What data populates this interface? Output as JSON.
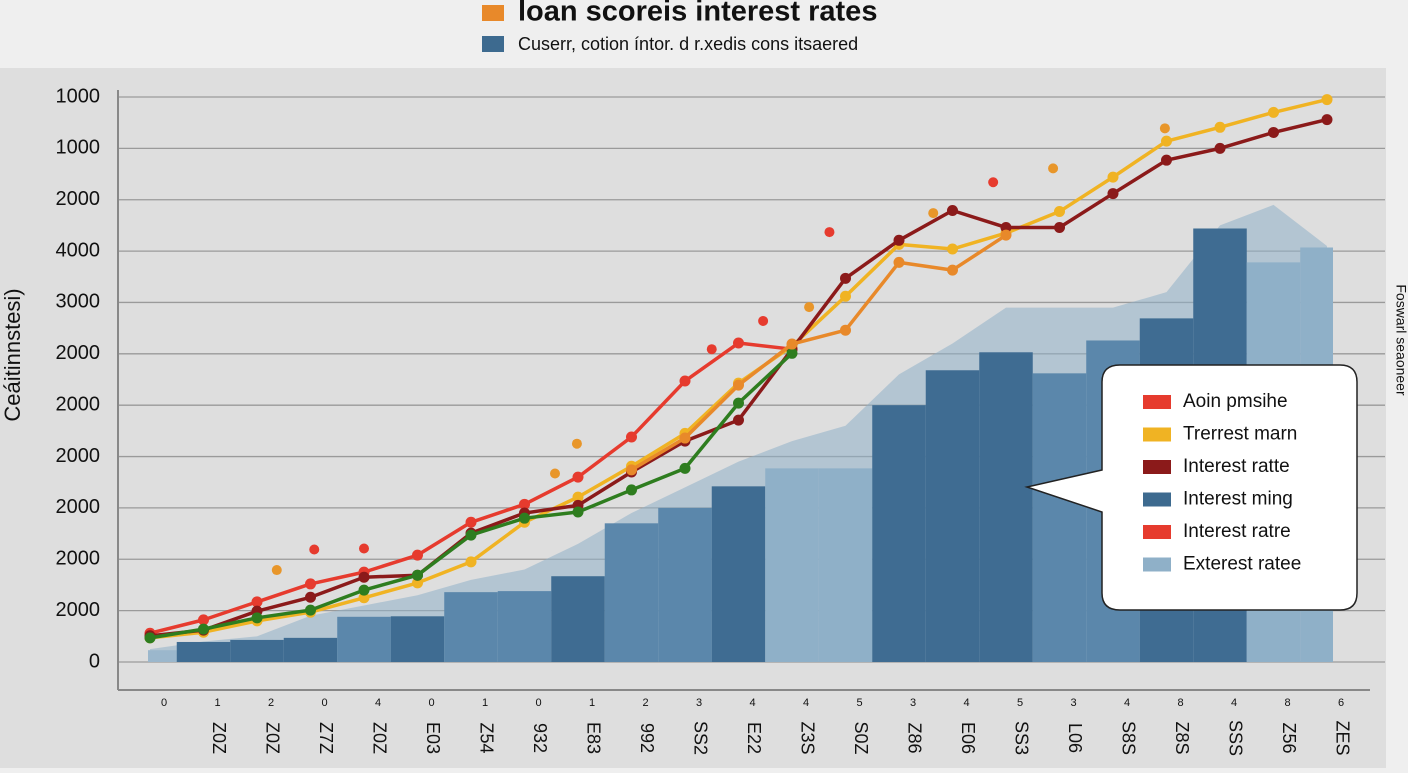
{
  "chart_data": {
    "type": "line",
    "title": "loan scoreis interest rates",
    "subtitle": "Cuserr, cotion íntor. d r.xedis cons itsaered",
    "y_label": "Ceáitinnstesi)",
    "right_label": "Foswarl seaoneer",
    "categories": [
      "0",
      "1",
      "2",
      "0",
      "4",
      "0",
      "1",
      "0",
      "1",
      "2",
      "3",
      "4",
      "4",
      "5",
      "3",
      "4",
      "5",
      "3",
      "4",
      "8",
      "4",
      "8",
      "6"
    ],
    "category_labels": [
      null,
      "Z0Z",
      "Z0Z",
      "Z7Z",
      "Z0Z",
      "E03",
      "Z54",
      "932",
      "E83",
      "992",
      "SS2",
      "E22",
      "Z3S",
      "S0Z",
      "Z86",
      "E06",
      "SS3",
      "L06",
      "S8S",
      "Z8S",
      "SSS",
      "Z56",
      "ZES"
    ],
    "ylim": [
      0,
      11
    ],
    "yticks": [
      {
        "value": 0,
        "label": "0"
      },
      {
        "value": 1,
        "label": "2000"
      },
      {
        "value": 2,
        "label": "2000"
      },
      {
        "value": 3,
        "label": "2000"
      },
      {
        "value": 4,
        "label": "2000"
      },
      {
        "value": 5,
        "label": "2000"
      },
      {
        "value": 6,
        "label": "2000"
      },
      {
        "value": 7,
        "label": "3000"
      },
      {
        "value": 8,
        "label": "4000"
      },
      {
        "value": 9,
        "label": "2000"
      },
      {
        "value": 10,
        "label": "1000"
      },
      {
        "value": 11,
        "label": "1000"
      }
    ],
    "grid": true,
    "series": [
      {
        "name": "Aoin pmsihe",
        "type": "line",
        "color": "#e63b2e",
        "values": [
          0.56,
          0.82,
          1.17,
          1.52,
          1.75,
          2.08,
          2.72,
          3.07,
          3.6,
          4.38,
          5.47,
          6.21,
          6.09,
          null,
          null,
          null,
          null,
          null,
          null,
          null,
          null,
          null,
          null
        ]
      },
      {
        "name": "Trerrest marn",
        "type": "line",
        "color": "#f0b323",
        "values": [
          0.47,
          0.58,
          0.8,
          0.97,
          1.25,
          1.54,
          1.95,
          2.72,
          3.21,
          3.81,
          4.45,
          5.43,
          6.15,
          7.12,
          8.13,
          8.04,
          8.35,
          8.77,
          9.44,
          10.14,
          10.41,
          10.7,
          10.95
        ]
      },
      {
        "name": "Interest ratte",
        "type": "line",
        "color": "#8b1a1a",
        "values": [
          0.51,
          0.62,
          0.99,
          1.26,
          1.65,
          1.69,
          2.51,
          2.9,
          3.05,
          3.7,
          4.3,
          4.71,
          6.09,
          7.47,
          8.21,
          8.79,
          8.46,
          8.46,
          9.12,
          9.77,
          10.0,
          10.31,
          10.56
        ]
      },
      {
        "name": "Interest ming",
        "type": "bar",
        "color": "#3d6a8f",
        "colors": [
          "#9bb7cc",
          "#3f6c92",
          "#3f6c92",
          "#3f6c92",
          "#5b87ab",
          "#3f6c92",
          "#5b87ab",
          "#5b87ab",
          "#3f6c92",
          "#5b87ab",
          "#5b87ab",
          "#3f6c92",
          "#8fb0c8",
          "#8fb0c8",
          "#3f6c92",
          "#3f6c92",
          "#3f6c92",
          "#5b87ab",
          "#5b87ab",
          "#3f6c92",
          "#3f6c92",
          "#8fb0c8",
          "#8fb0c8"
        ],
        "values": [
          0.23,
          0.39,
          0.43,
          0.47,
          0.88,
          0.89,
          1.36,
          1.38,
          1.67,
          2.7,
          3.0,
          3.42,
          3.77,
          3.77,
          5.0,
          5.68,
          6.03,
          5.62,
          6.26,
          6.69,
          8.44,
          7.78,
          8.07
        ]
      },
      {
        "name": "Interest ratre",
        "type": "scatter",
        "color": "#e63b2e",
        "x": [
          3.07,
          4.0,
          10.5,
          11.46,
          12.7,
          15.76
        ],
        "values": [
          2.19,
          2.21,
          6.09,
          6.64,
          8.37,
          9.34
        ]
      },
      {
        "name": "Exterest ratee",
        "type": "area",
        "color": "#8fb0c8",
        "values": [
          0.25,
          0.4,
          0.5,
          0.9,
          1.1,
          1.3,
          1.6,
          1.8,
          2.3,
          2.9,
          3.4,
          3.9,
          4.3,
          4.6,
          5.6,
          6.2,
          6.9,
          6.9,
          6.9,
          7.2,
          8.5,
          8.9,
          8.1
        ]
      },
      {
        "type": "line",
        "color": "#2e7d1f",
        "values": [
          0.47,
          0.64,
          0.86,
          1.01,
          1.4,
          1.69,
          2.47,
          2.8,
          2.92,
          3.35,
          3.77,
          5.04,
          6.01,
          null,
          null,
          null,
          null,
          null,
          null,
          null,
          null,
          null,
          null
        ]
      },
      {
        "type": "line",
        "color": "#e8892a",
        "values": [
          null,
          null,
          null,
          null,
          null,
          null,
          null,
          null,
          null,
          3.74,
          4.36,
          5.39,
          6.19,
          6.46,
          7.78,
          7.63,
          8.31,
          null,
          null,
          null,
          null,
          null,
          null
        ]
      },
      {
        "type": "scatter",
        "color": "#e8962a",
        "x": [
          2.37,
          7.57,
          7.98,
          12.32,
          14.64,
          16.88,
          18.97
        ],
        "values": [
          1.79,
          3.67,
          4.25,
          6.91,
          8.74,
          9.61,
          10.39
        ]
      }
    ]
  }
}
